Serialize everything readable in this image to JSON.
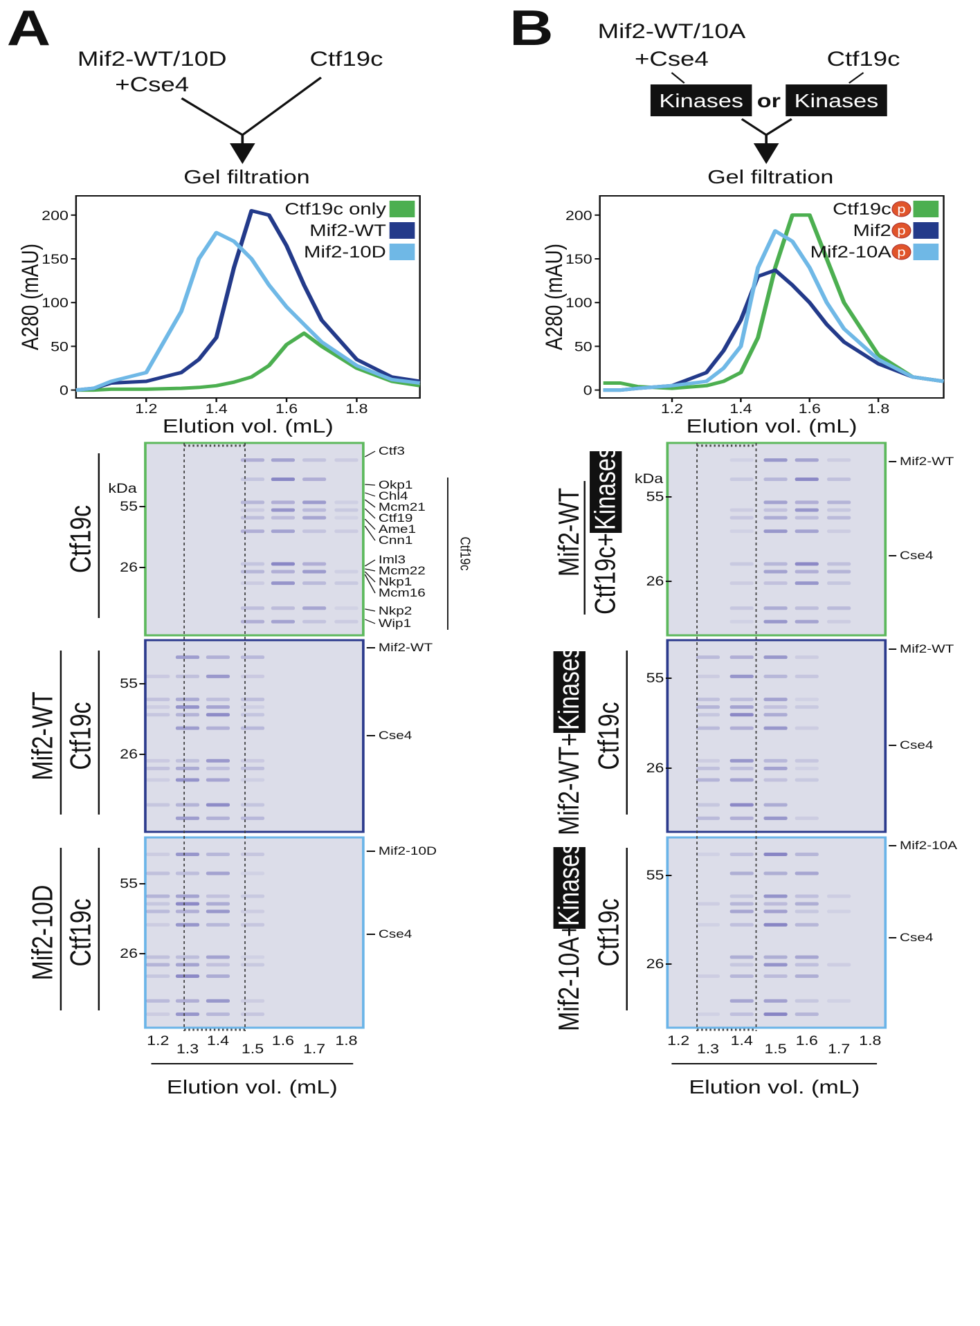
{
  "panels": [
    {
      "letter": "A",
      "scheme": {
        "left": [
          "Mif2-WT/10D",
          "+Cse4"
        ],
        "right": "Ctf19c",
        "step": "Gel filtration"
      },
      "gels": [
        {
          "side": [
            "Ctf19c"
          ],
          "unit": "kDa",
          "markers": [
            "55",
            "26"
          ],
          "proteins": [
            "Ctf3",
            "Okp1",
            "Chl4",
            "Mcm21",
            "Ctf19",
            "Ame1",
            "Cnn1",
            "Iml3",
            "Mcm22",
            "Nkp1",
            "Mcm16",
            "Nkp2",
            "Wip1"
          ],
          "group": "Ctf19c"
        },
        {
          "side": [
            "Mif2-WT",
            "Ctf19c"
          ],
          "markers": [
            "55",
            "26"
          ],
          "proteins": [
            "Mif2-WT",
            "Cse4"
          ]
        },
        {
          "side": [
            "Mif2-10D",
            "Ctf19c"
          ],
          "markers": [
            "55",
            "26"
          ],
          "proteins": [
            "Mif2-10D",
            "Cse4"
          ]
        }
      ],
      "lanes": [
        "1.2",
        "1.3",
        "1.4",
        "1.5",
        "1.6",
        "1.7",
        "1.8"
      ],
      "lane_axis": "Elution vol. (mL)"
    },
    {
      "letter": "B",
      "scheme": {
        "left": [
          "Mif2-WT/10A",
          "+Cse4"
        ],
        "right": "Ctf19c",
        "box": "Kinases",
        "or": "or",
        "step": "Gel filtration"
      },
      "gels": [
        {
          "side": [
            "Mif2-WT",
            "Ctf19c+",
            "Kinases"
          ],
          "unit": "kDa",
          "markers": [
            "55",
            "26"
          ],
          "proteins": [
            "Mif2-WT",
            "Cse4"
          ]
        },
        {
          "side": [
            "Mif2-WT+",
            "Kinases",
            "Ctf19c"
          ],
          "markers": [
            "55",
            "26"
          ],
          "proteins": [
            "Mif2-WT",
            "Cse4"
          ]
        },
        {
          "side": [
            "Mif2-10A+",
            "Kinases",
            "Ctf19c"
          ],
          "markers": [
            "55",
            "26"
          ],
          "proteins": [
            "Mif2-10A",
            "Cse4"
          ]
        }
      ],
      "lanes": [
        "1.2",
        "1.3",
        "1.4",
        "1.5",
        "1.6",
        "1.7",
        "1.8"
      ],
      "lane_axis": "Elution vol. (mL)"
    }
  ],
  "chart_data": [
    {
      "type": "line",
      "xlabel": "Elution vol. (mL)",
      "ylabel": "A280 (mAU)",
      "x": [
        1.0,
        1.05,
        1.1,
        1.2,
        1.3,
        1.35,
        1.4,
        1.45,
        1.5,
        1.55,
        1.6,
        1.65,
        1.7,
        1.8,
        1.9,
        1.98
      ],
      "xlim": [
        1.0,
        1.98
      ],
      "xticks": [
        1.2,
        1.4,
        1.6,
        1.8
      ],
      "ylim": [
        -9,
        222
      ],
      "yticks": [
        0,
        50,
        100,
        150,
        200
      ],
      "legend": "upper right",
      "series": [
        {
          "name": "Ctf19c only",
          "color": "#4caf50",
          "values": [
            0,
            0,
            1,
            1,
            2,
            3,
            5,
            9,
            15,
            28,
            52,
            65,
            50,
            25,
            10,
            5
          ]
        },
        {
          "name": "Mif2-WT",
          "color": "#233a8a",
          "values": [
            0,
            2,
            8,
            10,
            20,
            35,
            60,
            140,
            205,
            200,
            165,
            120,
            80,
            35,
            15,
            10
          ]
        },
        {
          "name": "Mif2-10D",
          "color": "#6fb8e6",
          "values": [
            0,
            2,
            10,
            20,
            90,
            150,
            180,
            170,
            150,
            120,
            95,
            75,
            55,
            28,
            12,
            8
          ]
        }
      ]
    },
    {
      "type": "line",
      "xlabel": "Elution vol. (mL)",
      "ylabel": "A280 (mAU)",
      "legend_badge": "p",
      "x": [
        1.0,
        1.05,
        1.1,
        1.2,
        1.3,
        1.35,
        1.4,
        1.45,
        1.5,
        1.55,
        1.6,
        1.65,
        1.7,
        1.8,
        1.9,
        1.99
      ],
      "xlim": [
        0.99,
        1.99
      ],
      "xticks": [
        1.2,
        1.4,
        1.6,
        1.8
      ],
      "ylim": [
        -9,
        222
      ],
      "yticks": [
        0,
        50,
        100,
        150,
        200
      ],
      "legend": "upper right",
      "series": [
        {
          "name": "Ctf19c",
          "color": "#4caf50",
          "values": [
            8,
            8,
            4,
            2,
            5,
            10,
            20,
            60,
            140,
            200,
            200,
            150,
            100,
            40,
            15,
            10
          ]
        },
        {
          "name": "Mif2",
          "color": "#233a8a",
          "values": [
            0,
            0,
            2,
            5,
            20,
            45,
            80,
            130,
            137,
            120,
            100,
            75,
            55,
            30,
            15,
            10
          ]
        },
        {
          "name": "Mif2-10A",
          "color": "#6fb8e6",
          "values": [
            0,
            0,
            2,
            5,
            10,
            25,
            50,
            140,
            182,
            170,
            140,
            100,
            70,
            35,
            15,
            10
          ]
        }
      ]
    }
  ]
}
